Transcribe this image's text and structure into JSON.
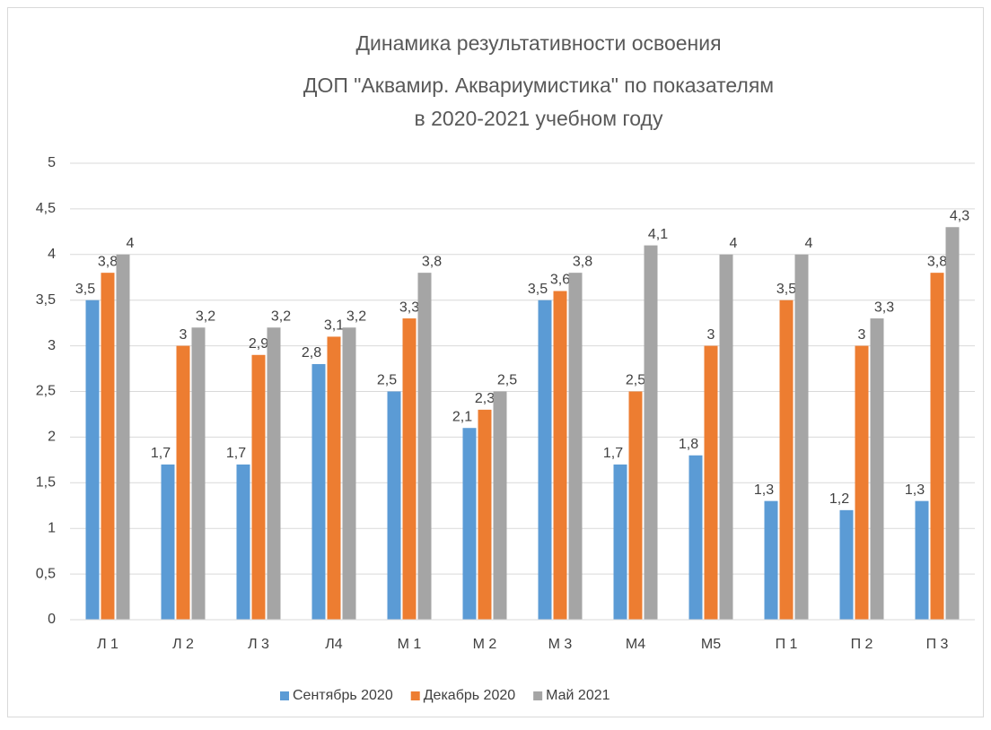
{
  "chart_data": {
    "type": "bar",
    "title": [
      "Динамика результативности освоения",
      "ДОП \"Аквамир. Аквариумистика\" по показателям",
      "в 2020-2021 учебном году"
    ],
    "categories": [
      "Л 1",
      "Л 2",
      "Л 3",
      "Л4",
      "М 1",
      "М 2",
      "М 3",
      "М4",
      "М5",
      "П 1",
      "П 2",
      "П 3"
    ],
    "series": [
      {
        "name": "Сентябрь 2020",
        "color": "#5b9bd5",
        "values": [
          3.5,
          1.7,
          1.7,
          2.8,
          2.5,
          2.1,
          3.5,
          1.7,
          1.8,
          1.3,
          1.2,
          1.3
        ],
        "value_labels": [
          "3,5",
          "1,7",
          "1,7",
          "2,8",
          "2,5",
          "2,1",
          "3,5",
          "1,7",
          "1,8",
          "1,3",
          "1,2",
          "1,3"
        ]
      },
      {
        "name": "Декабрь 2020",
        "color": "#ed7d31",
        "values": [
          3.8,
          3,
          2.9,
          3.1,
          3.3,
          2.3,
          3.6,
          2.5,
          3,
          3.5,
          3,
          3.8
        ],
        "value_labels": [
          "3,8",
          "3",
          "2,9",
          "3,1",
          "3,3",
          "2,3",
          "3,6",
          "2,5",
          "3",
          "3,5",
          "3",
          "3,8"
        ]
      },
      {
        "name": "Май 2021",
        "color": "#a5a5a5",
        "values": [
          4,
          3.2,
          3.2,
          3.2,
          3.8,
          2.5,
          3.8,
          4.1,
          4,
          4,
          3.3,
          4.3
        ],
        "value_labels": [
          "4",
          "3,2",
          "3,2",
          "3,2",
          "3,8",
          "2,5",
          "3,8",
          "4,1",
          "4",
          "4",
          "3,3",
          "4,3"
        ]
      }
    ],
    "ylim": [
      0,
      5
    ],
    "yticks": [
      0,
      {
        "value": 0.5,
        "label": "0,5"
      },
      1,
      {
        "value": 1.5,
        "label": "1,5"
      },
      2,
      {
        "value": 2.5,
        "label": "2,5"
      },
      3,
      {
        "value": 3.5,
        "label": "3,5"
      },
      4,
      {
        "value": 4.5,
        "label": "4,5"
      },
      5
    ],
    "grid": true,
    "legend": "bottom"
  }
}
